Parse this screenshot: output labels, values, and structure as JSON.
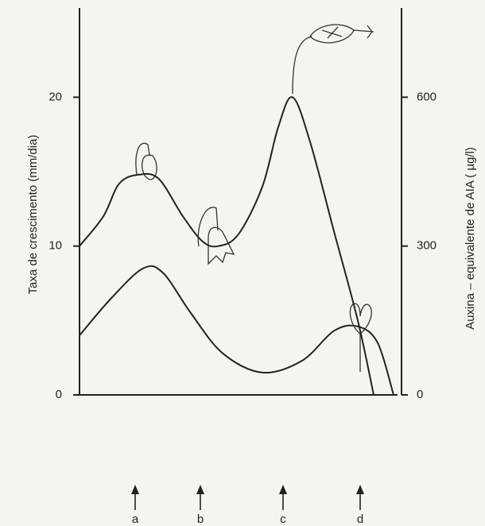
{
  "chart_data": {
    "type": "line",
    "ylabel": "Taxa de crescimento (mm/dia)",
    "y2label": "Auxina – equivalente de AIA ( µg/l)",
    "xlim": [
      0,
      100
    ],
    "ylim": [
      0,
      26
    ],
    "yticks": [
      0,
      10,
      20
    ],
    "y2lim": [
      0,
      780
    ],
    "y2ticks": [
      0,
      300,
      600
    ],
    "series": [
      {
        "color": "#222222",
        "x": [
          0,
          7.5,
          12.5,
          18.75,
          25,
          32.5,
          38.75,
          43.75,
          50,
          57.5,
          62.5,
          67,
          72.5,
          80,
          87.5,
          92.5
        ],
        "values": [
          10,
          12,
          14.2,
          14.8,
          14.5,
          12,
          10.3,
          10,
          10.8,
          14,
          18,
          20,
          17,
          11,
          5,
          0
        ]
      },
      {
        "color": "#222222",
        "axis": "y2",
        "x": [
          0,
          10,
          20,
          26.25,
          35,
          45,
          57.5,
          70,
          80,
          87.5,
          93.75,
          98.75
        ],
        "values": [
          120,
          195,
          255,
          246,
          165,
          84,
          45,
          69,
          129,
          138,
          105,
          0
        ]
      }
    ],
    "markers": [
      {
        "label": "a",
        "x": 17.5
      },
      {
        "label": "b",
        "x": 38
      },
      {
        "label": "c",
        "x": 64
      },
      {
        "label": "d",
        "x": 88.25
      }
    ]
  }
}
